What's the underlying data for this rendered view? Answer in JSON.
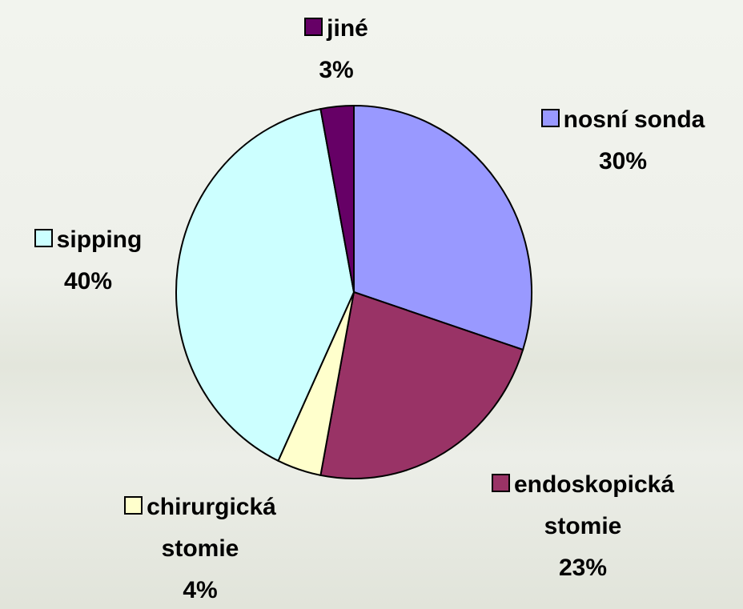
{
  "chart_data": {
    "type": "pie",
    "categories": [
      "nosní sonda",
      "endoskopická stomie",
      "chirurgická stomie",
      "sipping",
      "jiné"
    ],
    "values": [
      30,
      23,
      4,
      40,
      3
    ],
    "value_labels": [
      "30%",
      "23%",
      "4%",
      "40%",
      "3%"
    ],
    "colors": [
      "#9999ff",
      "#993366",
      "#ffffcc",
      "#ccffff",
      "#660066"
    ]
  }
}
